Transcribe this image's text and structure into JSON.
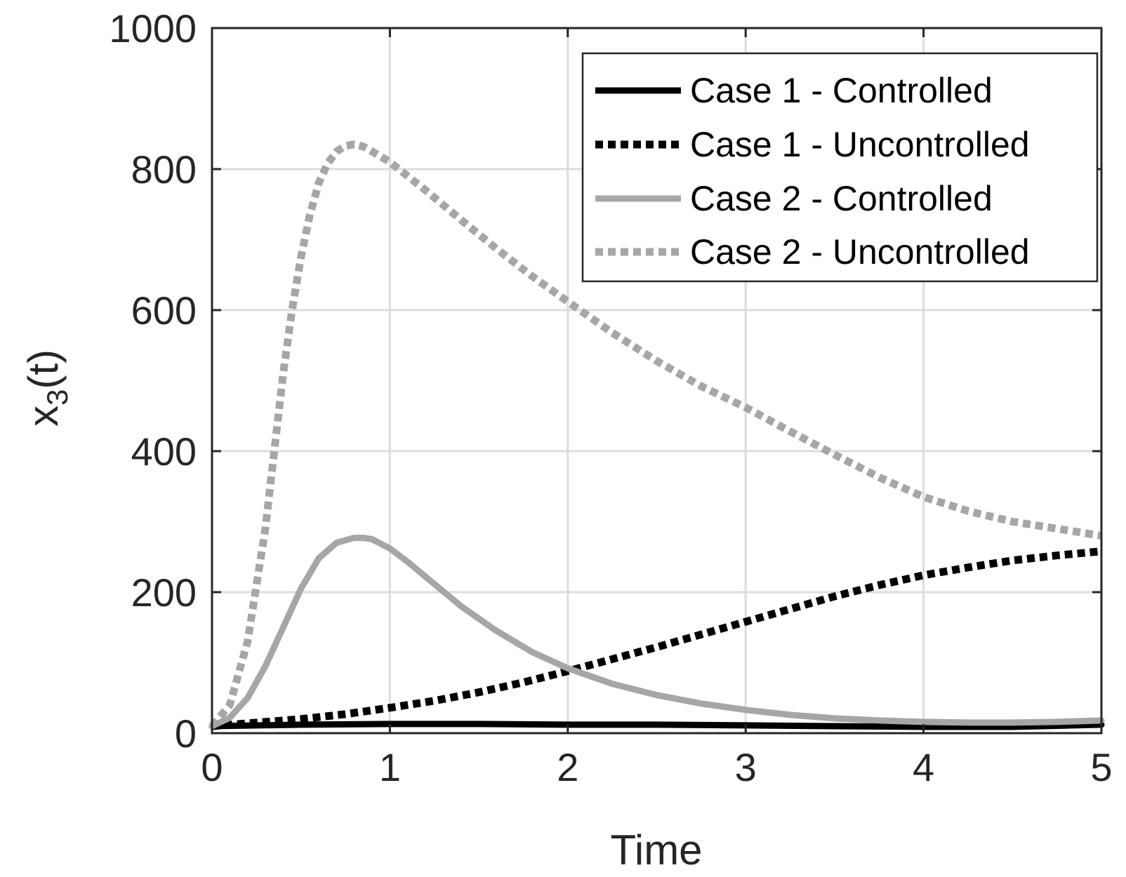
{
  "chart_data": {
    "type": "line",
    "xlabel": "Time",
    "ylabel_main": "x",
    "ylabel_sub": "3",
    "ylabel_tail": "(t)",
    "xlim": [
      0,
      5
    ],
    "ylim": [
      0,
      1000
    ],
    "xticks": [
      0,
      1,
      2,
      3,
      4,
      5
    ],
    "yticks": [
      0,
      200,
      400,
      600,
      800,
      1000
    ],
    "grid": true,
    "legend_position": "top-right",
    "series": [
      {
        "name": "Case 1 - Controlled",
        "color": "#000000",
        "style": "solid",
        "x": [
          0,
          0.5,
          1,
          1.5,
          2,
          2.5,
          3,
          3.5,
          4,
          4.5,
          5
        ],
        "y": [
          10,
          12,
          13,
          13,
          12,
          12,
          11,
          10,
          9,
          9,
          12
        ]
      },
      {
        "name": "Case 1 - Uncontrolled",
        "color": "#000000",
        "style": "dotted",
        "x": [
          0,
          0.25,
          0.5,
          0.75,
          1,
          1.25,
          1.5,
          1.75,
          2,
          2.25,
          2.5,
          2.75,
          3,
          3.25,
          3.5,
          3.75,
          4,
          4.25,
          4.5,
          4.75,
          5
        ],
        "y": [
          10,
          15,
          20,
          27,
          36,
          46,
          58,
          72,
          88,
          105,
          122,
          140,
          158,
          176,
          194,
          210,
          224,
          235,
          245,
          252,
          258
        ]
      },
      {
        "name": "Case 2 - Controlled",
        "color": "#a6a6a6",
        "style": "solid",
        "x": [
          0,
          0.1,
          0.2,
          0.3,
          0.4,
          0.5,
          0.6,
          0.7,
          0.8,
          0.85,
          0.9,
          1.0,
          1.1,
          1.2,
          1.4,
          1.6,
          1.8,
          2.0,
          2.25,
          2.5,
          2.75,
          3.0,
          3.25,
          3.5,
          3.75,
          4.0,
          4.25,
          4.5,
          4.75,
          5.0
        ],
        "y": [
          10,
          22,
          50,
          95,
          150,
          205,
          248,
          270,
          277,
          277,
          275,
          262,
          243,
          222,
          180,
          145,
          115,
          92,
          70,
          54,
          42,
          33,
          26,
          21,
          18,
          16,
          15,
          15,
          16,
          18
        ]
      },
      {
        "name": "Case 2 - Uncontrolled",
        "color": "#a6a6a6",
        "style": "dotted",
        "x": [
          0,
          0.1,
          0.2,
          0.3,
          0.35,
          0.4,
          0.45,
          0.5,
          0.55,
          0.6,
          0.65,
          0.7,
          0.75,
          0.8,
          0.85,
          0.9,
          1.0,
          1.2,
          1.4,
          1.6,
          1.8,
          2.0,
          2.25,
          2.5,
          2.75,
          3.0,
          3.25,
          3.5,
          3.75,
          4.0,
          4.25,
          4.5,
          4.75,
          5.0
        ],
        "y": [
          10,
          40,
          130,
          290,
          400,
          510,
          600,
          675,
          735,
          780,
          808,
          825,
          833,
          835,
          832,
          825,
          810,
          770,
          728,
          687,
          648,
          612,
          568,
          528,
          492,
          462,
          428,
          395,
          363,
          335,
          315,
          300,
          290,
          280
        ]
      }
    ]
  }
}
